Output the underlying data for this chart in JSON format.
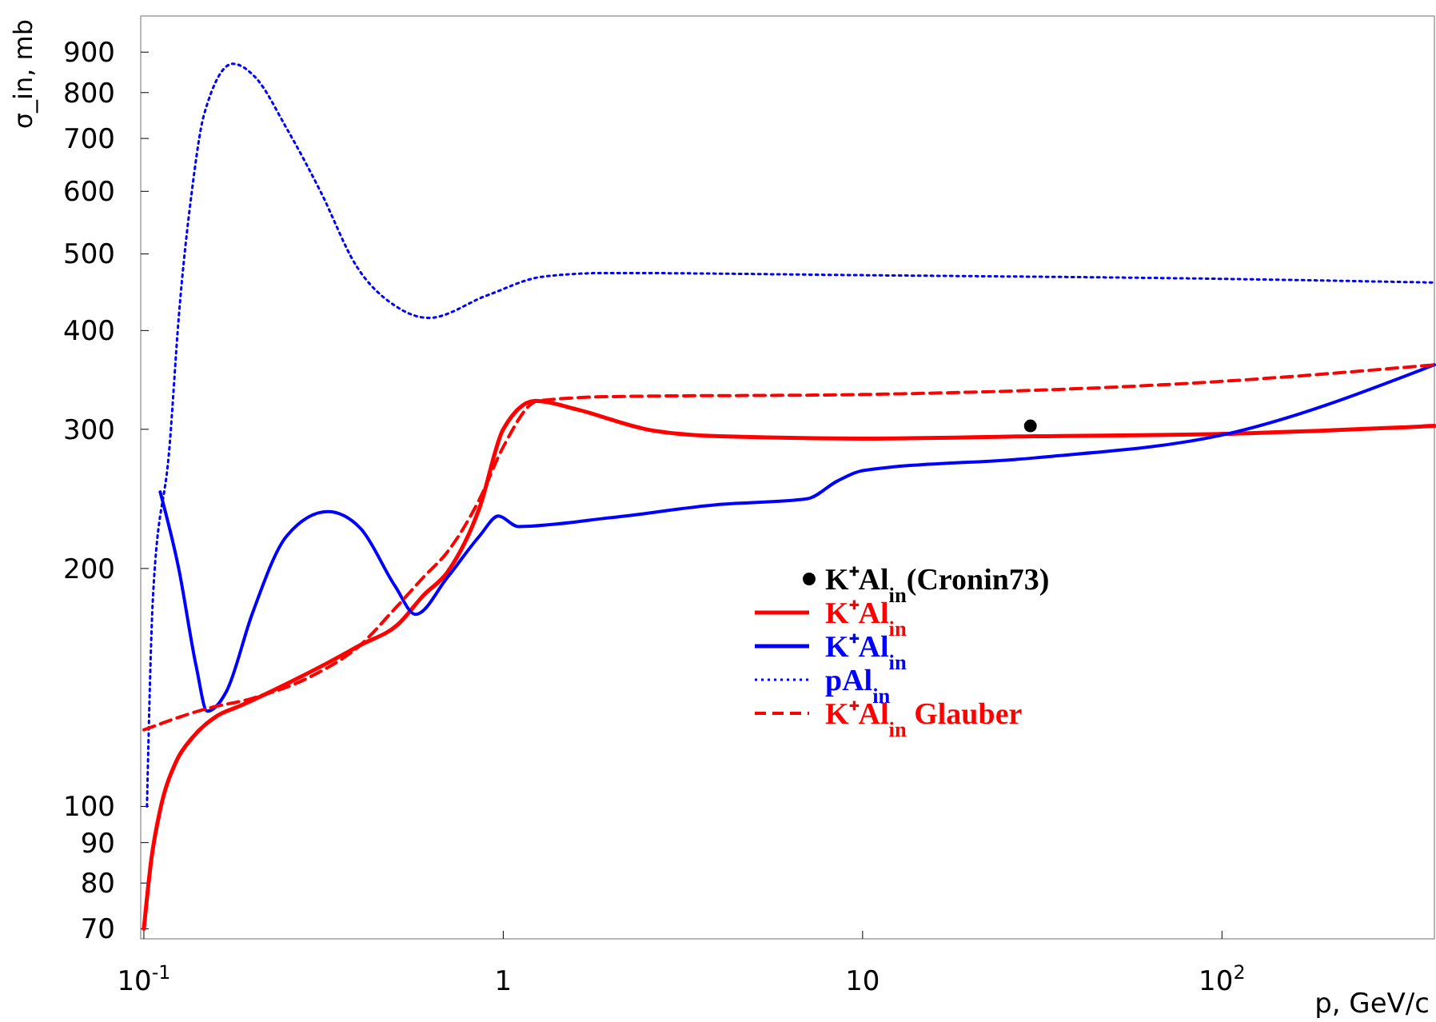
{
  "chart_data": {
    "type": "line",
    "xlabel": "p, GeV/c",
    "ylabel": "σ_in, mb",
    "log": "xy",
    "grid": false,
    "legend": "right",
    "xlim": [
      0.098,
      390
    ],
    "ylim": [
      68,
      1000
    ],
    "xticks": [
      {
        "value": 0.1,
        "label": "10$^{-1}$"
      },
      1,
      10,
      {
        "value": 100,
        "label": "10$^{2}$"
      }
    ],
    "yticks": [
      70,
      80,
      90,
      100,
      200,
      300,
      400,
      500,
      600,
      700,
      800,
      900
    ],
    "series": [
      {
        "name": "K⁺Al$_{in}$(Cronin73)",
        "type": "scatter",
        "marker": "circle",
        "color": "#000000",
        "x": [
          29.3
        ],
        "values": [
          303
        ]
      },
      {
        "name": "K⁺Al$_{in}$",
        "line_style": "solid",
        "color": "#ff0000",
        "x": [
          0.1,
          0.105,
          0.111,
          0.123,
          0.136,
          0.159,
          0.185,
          0.25,
          0.308,
          0.4,
          0.51,
          0.6,
          0.7,
          0.86,
          1.0,
          1.23,
          1.6,
          2.5,
          4,
          10,
          30,
          100,
          390
        ],
        "values": [
          70,
          86,
          99,
          114,
          122,
          130,
          134,
          143,
          150,
          160,
          170,
          185,
          198,
          239,
          300,
          326,
          318,
          300,
          294,
          292,
          294,
          296,
          303
        ]
      },
      {
        "name": "K⁺Al$_{in}$",
        "line_style": "solid",
        "color": "#0000ff",
        "x": [
          0.111,
          0.125,
          0.14,
          0.15,
          0.17,
          0.2,
          0.25,
          0.325,
          0.4,
          0.5,
          0.57,
          0.7,
          0.86,
          0.97,
          1.1,
          2,
          4,
          7,
          8.5,
          10,
          30,
          100,
          390
        ],
        "values": [
          250,
          200,
          150,
          132,
          140,
          175,
          220,
          236,
          225,
          190,
          175,
          195,
          220,
          233,
          226,
          232,
          241,
          245,
          258,
          266,
          276,
          295,
          362
        ]
      },
      {
        "name": "pAl$_{in}$",
        "line_style": "dotted",
        "color": "#0000ff",
        "x": [
          0.102,
          0.106,
          0.118,
          0.125,
          0.136,
          0.147,
          0.177,
          0.204,
          0.25,
          0.31,
          0.39,
          0.5,
          0.62,
          0.9,
          1.29,
          1.94,
          10,
          100,
          390
        ],
        "values": [
          100,
          184,
          287,
          415,
          600,
          750,
          870,
          837,
          720,
          600,
          483,
          430,
          415,
          443,
          468,
          473,
          470,
          465,
          460
        ]
      },
      {
        "name": "K⁺Al$_{in}$ Glauber",
        "line_style": "dashed",
        "color": "#ff0000",
        "x": [
          0.1,
          0.15,
          0.2,
          0.3,
          0.4,
          0.5,
          0.6,
          0.7,
          0.86,
          1.0,
          1.25,
          2,
          10,
          100,
          390
        ],
        "values": [
          125,
          133,
          137,
          147,
          160,
          178,
          195,
          210,
          245,
          285,
          326,
          330,
          332,
          345,
          362
        ]
      }
    ]
  }
}
